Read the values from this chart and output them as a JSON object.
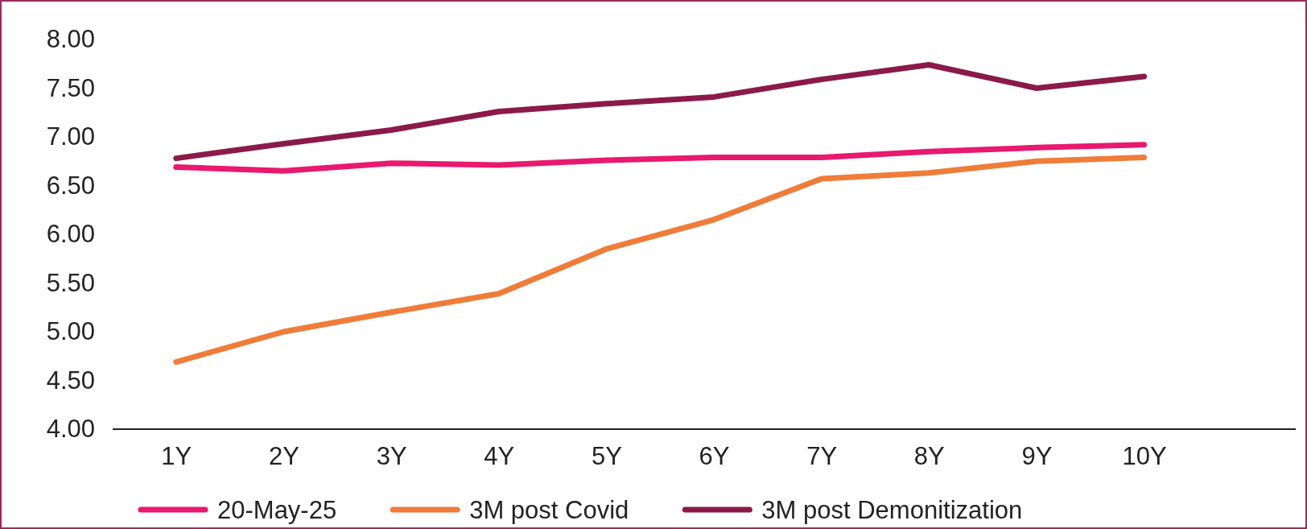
{
  "chart_data": {
    "type": "line",
    "categories": [
      "1Y",
      "2Y",
      "3Y",
      "4Y",
      "5Y",
      "6Y",
      "7Y",
      "8Y",
      "9Y",
      "10Y"
    ],
    "series": [
      {
        "name": "20-May-25",
        "color": "#e8196e",
        "values": [
          6.69,
          6.65,
          6.73,
          6.71,
          6.76,
          6.79,
          6.79,
          6.85,
          6.89,
          6.92
        ]
      },
      {
        "name": "3M post Covid",
        "color": "#f07c3a",
        "values": [
          4.69,
          5.0,
          5.2,
          5.39,
          5.85,
          6.15,
          6.57,
          6.63,
          6.75,
          6.79
        ]
      },
      {
        "name": "3M post Demonitization",
        "color": "#8b1a4a",
        "values": [
          6.78,
          6.93,
          7.07,
          7.26,
          7.34,
          7.41,
          7.59,
          7.74,
          7.5,
          7.62
        ]
      }
    ],
    "ylim": [
      4,
      8
    ],
    "yticks": [
      {
        "value": 4,
        "label": "4.00"
      },
      {
        "value": 4.5,
        "label": "4.50"
      },
      {
        "value": 5,
        "label": "5.00"
      },
      {
        "value": 5.5,
        "label": "5.50"
      },
      {
        "value": 6,
        "label": "6.00"
      },
      {
        "value": 6.5,
        "label": "6.50"
      },
      {
        "value": 7,
        "label": "7.00"
      },
      {
        "value": 7.5,
        "label": "7.50"
      },
      {
        "value": 8,
        "label": "8.00"
      }
    ],
    "grid": false,
    "legend": "bottom",
    "marker": "none",
    "line_style": "solid"
  }
}
